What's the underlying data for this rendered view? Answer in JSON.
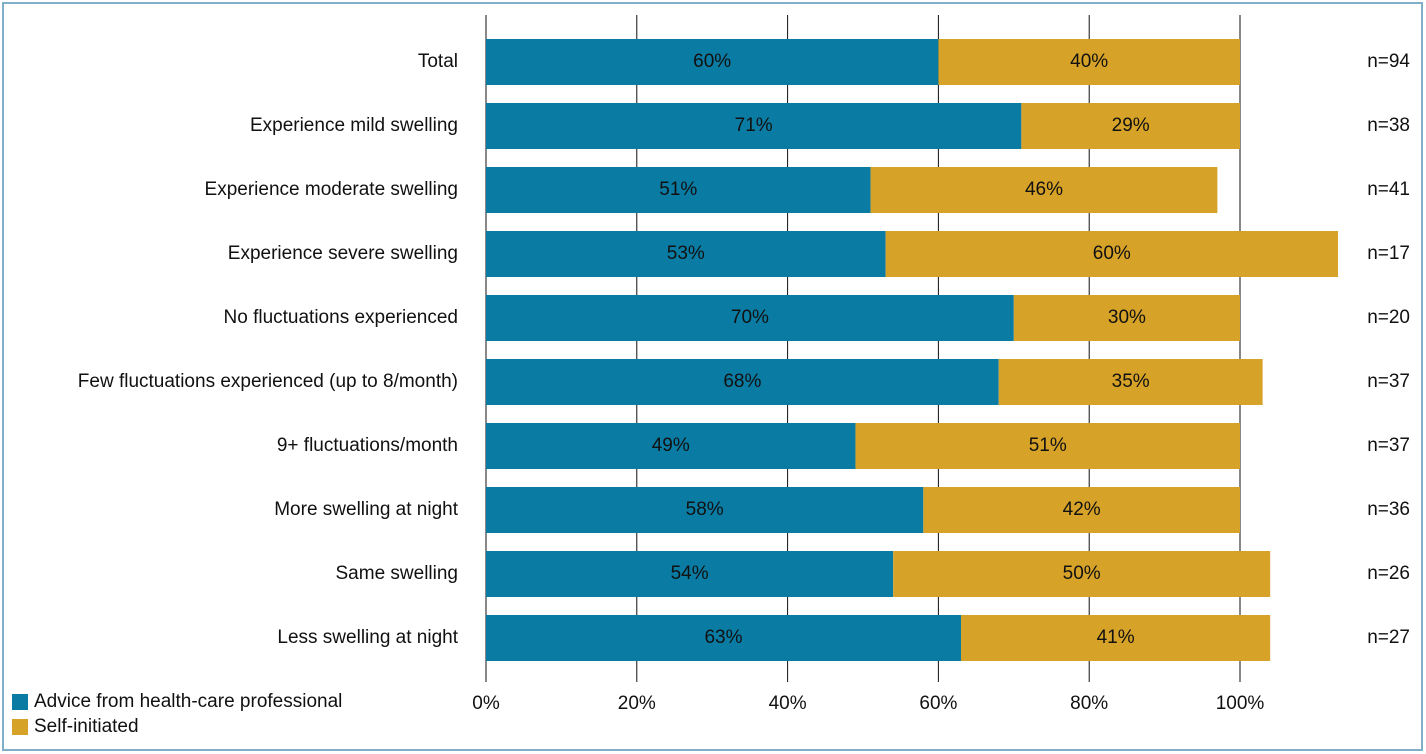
{
  "chart_data": {
    "type": "stacked-bar-horizontal",
    "categories": [
      "Total",
      "Experience mild swelling",
      "Experience moderate swelling",
      "Experience severe swelling",
      "No fluctuations experienced",
      "Few fluctuations experienced (up to 8/month)",
      "9+ fluctuations/month",
      "More swelling at night",
      "Same swelling",
      "Less swelling at night"
    ],
    "series": [
      {
        "name": "Advice from health-care professional",
        "color": "#0a7ba3",
        "values": [
          60,
          71,
          51,
          53,
          70,
          68,
          49,
          58,
          54,
          63
        ],
        "value_labels": [
          "60%",
          "71%",
          "51%",
          "53%",
          "70%",
          "68%",
          "49%",
          "58%",
          "54%",
          "63%"
        ]
      },
      {
        "name": "Self-initiated",
        "color": "#d6a228",
        "values": [
          40,
          29,
          46,
          60,
          30,
          35,
          51,
          42,
          50,
          41
        ],
        "value_labels": [
          "40%",
          "29%",
          "46%",
          "60%",
          "30%",
          "35%",
          "51%",
          "42%",
          "50%",
          "41%"
        ]
      }
    ],
    "annotations": [
      "n=94",
      "n=38",
      "n=41",
      "n=17",
      "n=20",
      "n=37",
      "n=37",
      "n=36",
      "n=26",
      "n=27"
    ],
    "xlim": [
      0,
      120
    ],
    "xticks": [
      {
        "value": 0,
        "label": "0%"
      },
      {
        "value": 20,
        "label": "20%"
      },
      {
        "value": 40,
        "label": "40%"
      },
      {
        "value": 60,
        "label": "60%"
      },
      {
        "value": 80,
        "label": "80%"
      },
      {
        "value": 100,
        "label": "100%"
      }
    ],
    "grid": true,
    "legend": "bottom-left"
  }
}
